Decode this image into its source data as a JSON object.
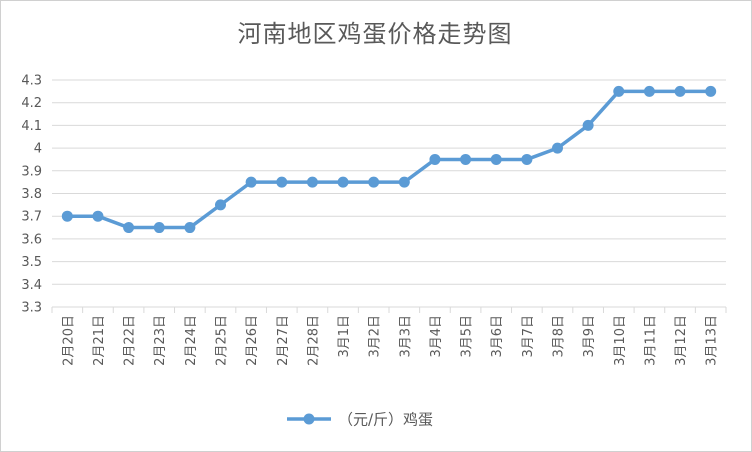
{
  "chart_data": {
    "type": "line",
    "title": "河南地区鸡蛋价格走势图",
    "xlabel": "",
    "ylabel": "",
    "ylim": [
      3.3,
      4.3
    ],
    "y_ticks": [
      "3.3",
      "3.4",
      "3.5",
      "3.6",
      "3.7",
      "3.8",
      "3.9",
      "4",
      "4.1",
      "4.2",
      "4.3"
    ],
    "y_tick_values": [
      3.3,
      3.4,
      3.5,
      3.6,
      3.7,
      3.8,
      3.9,
      4.0,
      4.1,
      4.2,
      4.3
    ],
    "categories": [
      "2月20日",
      "2月21日",
      "2月22日",
      "2月23日",
      "2月24日",
      "2月25日",
      "2月26日",
      "2月27日",
      "2月28日",
      "3月1日",
      "3月2日",
      "3月3日",
      "3月4日",
      "3月5日",
      "3月6日",
      "3月7日",
      "3月8日",
      "3月9日",
      "3月10日",
      "3月11日",
      "3月12日",
      "3月13日"
    ],
    "series": [
      {
        "name": "（元/斤）鸡蛋",
        "values": [
          3.7,
          3.7,
          3.65,
          3.65,
          3.65,
          3.75,
          3.85,
          3.85,
          3.85,
          3.85,
          3.85,
          3.85,
          3.95,
          3.95,
          3.95,
          3.95,
          4.0,
          4.1,
          4.25,
          4.25,
          4.25,
          4.25
        ],
        "color": "#5b9bd5"
      }
    ],
    "grid": true,
    "legend_position": "bottom"
  }
}
